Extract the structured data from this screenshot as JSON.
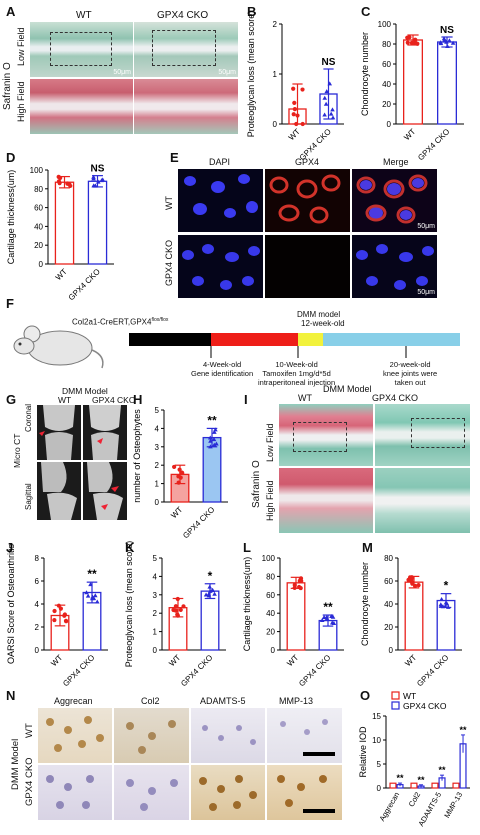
{
  "colors": {
    "wt": "#e8221c",
    "cko": "#2a2bd6",
    "wt_fill": "#f4a3a0",
    "cko_fill": "#9bc6f2",
    "safranin_bg": "#6fb9a6",
    "safranin_red": "#c8505e"
  },
  "panels": {
    "A": {
      "letter": "A",
      "cols": [
        "WT",
        "GPX4 CKO"
      ],
      "rows": [
        "Low Field",
        "High Field"
      ],
      "side": "Safranin O",
      "scale": "50μm"
    },
    "E": {
      "letter": "E",
      "cols": [
        "DAPI",
        "GPX4",
        "Merge"
      ],
      "rows": [
        "WT",
        "GPX4 CKO"
      ],
      "scale": "50μm"
    },
    "F": {
      "letter": "F",
      "mouse": "Col2a1-CreERT,GPX4",
      "mouse_sup": "flox/flox",
      "top1": "DMM model",
      "top2": "12-week-old",
      "ann1a": "4-Week-old",
      "ann1b": "Gene identification",
      "ann2a": "10-Week-old",
      "ann2b": "Tamoxifen 1mg/d*5d",
      "ann2c": "intraperitoneal injection",
      "ann3a": "20-week-old",
      "ann3b": "knee joints were",
      "ann3c": "taken out"
    },
    "G": {
      "letter": "G",
      "title": "DMM Model",
      "cols": [
        "WT",
        "GPX4 CKO"
      ],
      "side": "Micro CT",
      "rows": [
        "Coronal",
        "Sagittal"
      ]
    },
    "I": {
      "letter": "I",
      "title": "DMM Model",
      "cols": [
        "WT",
        "GPX4 CKO"
      ],
      "side": "Safranin O",
      "rows": [
        "Low Field",
        "High Field"
      ]
    },
    "N": {
      "letter": "N",
      "cols": [
        "Aggrecan",
        "Col2",
        "ADAMTS-5",
        "MMP-13"
      ],
      "side": "DMM Model",
      "rows": [
        "WT",
        "GPX4 CKO"
      ]
    }
  },
  "chart_data": [
    {
      "id": "B",
      "type": "bar",
      "categories": [
        "WT",
        "GPX4 CKO"
      ],
      "values": [
        0.3,
        0.6
      ],
      "errors": [
        0.5,
        0.5
      ],
      "ylabel": "Proteoglycan loss (mean score)",
      "ylim": [
        0,
        2
      ],
      "yticks": [
        "0",
        "1",
        "2"
      ],
      "annotation": "NS"
    },
    {
      "id": "C",
      "type": "bar",
      "categories": [
        "WT",
        "GPX4 CKO"
      ],
      "values": [
        84,
        82
      ],
      "errors": [
        5,
        5
      ],
      "ylabel": "Chondrocyte number",
      "ylim": [
        0,
        100
      ],
      "yticks": [
        "0",
        "20",
        "40",
        "60",
        "80",
        "100"
      ],
      "annotation": "NS"
    },
    {
      "id": "D",
      "type": "bar",
      "categories": [
        "WT",
        "GPX4 CKO"
      ],
      "values": [
        87,
        88
      ],
      "errors": [
        6,
        6
      ],
      "ylabel": "Cartilage thickness(um)",
      "ylim": [
        0,
        100
      ],
      "yticks": [
        "0",
        "20",
        "40",
        "60",
        "80",
        "100"
      ],
      "annotation": "NS"
    },
    {
      "id": "H",
      "type": "bar",
      "categories": [
        "WT",
        "GPX4 CKO"
      ],
      "values": [
        1.5,
        3.5
      ],
      "errors": [
        0.5,
        0.5
      ],
      "ylabel": "number of Osteophytes",
      "ylim": [
        0,
        5
      ],
      "yticks": [
        "0",
        "1",
        "2",
        "3",
        "4",
        "5"
      ],
      "annotation": "**"
    },
    {
      "id": "J",
      "type": "bar",
      "categories": [
        "WT",
        "GPX4 CKO"
      ],
      "values": [
        3.0,
        5.0
      ],
      "errors": [
        0.9,
        0.9
      ],
      "ylabel": "OARSI Score of Osteoarthritis",
      "ylim": [
        0,
        8
      ],
      "yticks": [
        "0",
        "2",
        "4",
        "6",
        "8"
      ],
      "annotation": "**"
    },
    {
      "id": "K",
      "type": "bar",
      "categories": [
        "WT",
        "GPX4 CKO"
      ],
      "values": [
        2.3,
        3.2
      ],
      "errors": [
        0.5,
        0.4
      ],
      "ylabel": "Proteoglycan loss (mean score)",
      "ylim": [
        0,
        5
      ],
      "yticks": [
        "0",
        "1",
        "2",
        "3",
        "4",
        "5"
      ],
      "annotation": "*"
    },
    {
      "id": "L",
      "type": "bar",
      "categories": [
        "WT",
        "GPX4 CKO"
      ],
      "values": [
        73,
        32
      ],
      "errors": [
        6,
        6
      ],
      "ylabel": "Cartilage thickness(um)",
      "ylim": [
        0,
        100
      ],
      "yticks": [
        "0",
        "20",
        "40",
        "60",
        "80",
        "100"
      ],
      "annotation": "**"
    },
    {
      "id": "M",
      "type": "bar",
      "categories": [
        "WT",
        "GPX4 CKO"
      ],
      "values": [
        59,
        43
      ],
      "errors": [
        5,
        6
      ],
      "ylabel": "Chondrocyte number",
      "ylim": [
        0,
        80
      ],
      "yticks": [
        "0",
        "20",
        "40",
        "60",
        "80"
      ],
      "annotation": "*"
    },
    {
      "id": "O",
      "type": "bar",
      "categories": [
        "Aggrecan",
        "Col2",
        "ADAMTS-5",
        "MMP-13"
      ],
      "series": [
        {
          "name": "WT",
          "values": [
            1,
            1,
            1,
            1
          ]
        },
        {
          "name": "GPX4 CKO",
          "values": [
            0.7,
            0.4,
            2.1,
            9.2
          ]
        }
      ],
      "ylabel": "Relative IOD",
      "ylim": [
        0,
        15
      ],
      "yticks": [
        "0",
        "5",
        "10",
        "15"
      ],
      "annotations": [
        "**",
        "**",
        "**",
        "**"
      ]
    }
  ]
}
